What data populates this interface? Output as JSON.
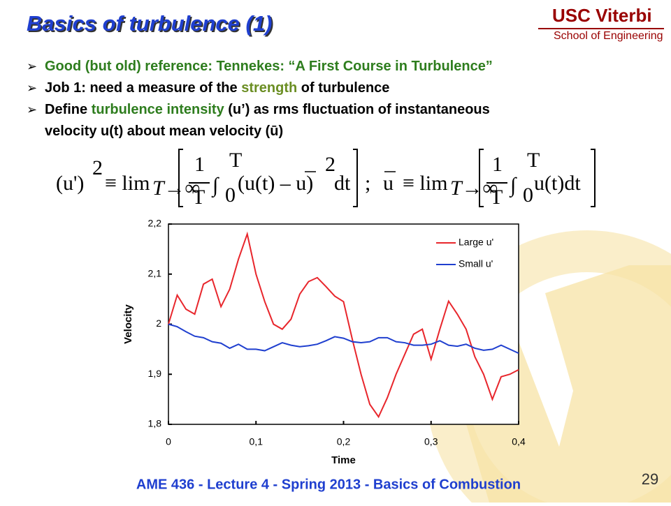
{
  "header": {
    "title": "Basics of turbulence (1)",
    "logo_top": "USC Viterbi",
    "logo_bottom": "School of Engineering"
  },
  "bullets": [
    [
      {
        "text": "Good (but old) reference:  Tennekes:  “A First Course in Turbulence”",
        "color": "#2e7d1e"
      }
    ],
    [
      {
        "text": "Job 1:  need a measure of the ",
        "color": "#000000"
      },
      {
        "text": "strength",
        "color": "#6b8e23"
      },
      {
        "text": " of turbulence",
        "color": "#000000"
      }
    ],
    [
      {
        "text": "Define ",
        "color": "#000000"
      },
      {
        "text": "turbulence intensity",
        "color": "#2e7d1e"
      },
      {
        "text": " (u’) as rms fluctuation of instantaneous",
        "color": "#000000"
      }
    ],
    [
      {
        "text": "velocity u(t) about mean velocity (ū)",
        "color": "#000000"
      }
    ]
  ],
  "formula": [
    "(u')",
    "2",
    "≡ lim",
    "T→∞",
    "1",
    "T",
    "∫",
    "T",
    "0",
    "(u(t) – u)",
    "2",
    "dt",
    ";",
    "u",
    "≡ lim",
    "T→∞",
    "1",
    "T",
    "∫",
    "T",
    "0",
    "u(t)dt"
  ],
  "footer": "AME 436 - Lecture 4 - Spring 2013 - Basics of Combustion",
  "page_number": "29",
  "chart_data": {
    "type": "line",
    "xlabel": "Time",
    "ylabel": "Velocity",
    "legend": "upper right",
    "grid": false,
    "x": [
      0,
      0.01,
      0.02,
      0.03,
      0.04,
      0.05,
      0.06,
      0.07,
      0.08,
      0.09,
      0.1,
      0.11,
      0.12,
      0.13,
      0.14,
      0.15,
      0.16,
      0.17,
      0.18,
      0.19,
      0.2,
      0.21,
      0.22,
      0.23,
      0.24,
      0.25,
      0.26,
      0.27,
      0.28,
      0.29,
      0.3,
      0.31,
      0.32,
      0.33,
      0.34,
      0.35,
      0.36,
      0.37,
      0.38,
      0.39,
      0.4
    ],
    "series": [
      {
        "name": "Large u'",
        "color": "#e8262c",
        "values": [
          2.0,
          2.058,
          2.03,
          2.02,
          2.08,
          2.09,
          2.035,
          2.07,
          2.13,
          2.18,
          2.1,
          2.045,
          2.0,
          1.99,
          2.01,
          2.06,
          2.085,
          2.093,
          2.075,
          2.056,
          2.045,
          1.97,
          1.9,
          1.84,
          1.815,
          1.853,
          1.9,
          1.94,
          1.98,
          1.99,
          1.93,
          1.99,
          2.046,
          2.02,
          1.99,
          1.935,
          1.9,
          1.85,
          1.895,
          1.9,
          1.909
        ]
      },
      {
        "name": "Small u'",
        "color": "#1f3fcf",
        "values": [
          2.0,
          1.995,
          1.985,
          1.976,
          1.973,
          1.965,
          1.962,
          1.952,
          1.96,
          1.95,
          1.95,
          1.947,
          1.955,
          1.963,
          1.958,
          1.955,
          1.957,
          1.96,
          1.967,
          1.975,
          1.972,
          1.965,
          1.963,
          1.965,
          1.973,
          1.973,
          1.965,
          1.963,
          1.958,
          1.958,
          1.96,
          1.967,
          1.958,
          1.956,
          1.96,
          1.952,
          1.948,
          1.95,
          1.958,
          1.95,
          1.942
        ]
      }
    ],
    "xlim": [
      0,
      0.4
    ],
    "xticks": [
      0,
      {
        "value": 0.1,
        "label": "0,1"
      },
      {
        "value": 0.2,
        "label": "0,2"
      },
      {
        "value": 0.3,
        "label": "0,3"
      },
      {
        "value": 0.4,
        "label": "0,4"
      }
    ],
    "ylim": [
      1.8,
      2.2
    ],
    "yticks": [
      {
        "value": 1.8,
        "label": "1,8"
      },
      {
        "value": 1.9,
        "label": "1,9"
      },
      2,
      {
        "value": 2.1,
        "label": "2,1"
      },
      {
        "value": 2.2,
        "label": "2,2"
      }
    ]
  }
}
